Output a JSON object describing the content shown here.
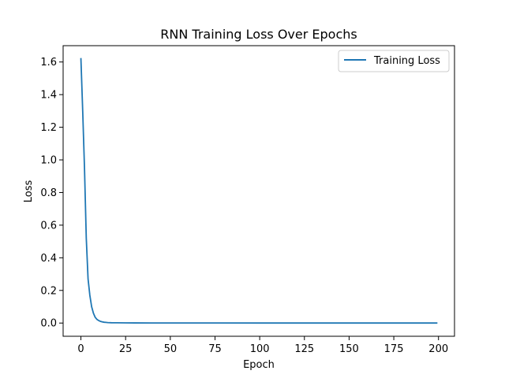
{
  "chart_data": {
    "type": "line",
    "title": "RNN Training Loss Over Epochs",
    "xlabel": "Epoch",
    "ylabel": "Loss",
    "xlim": [
      -9.95,
      208.95
    ],
    "ylim": [
      -0.081,
      1.7
    ],
    "x_ticks": [
      0,
      25,
      50,
      75,
      100,
      125,
      150,
      175,
      200
    ],
    "y_ticks": [
      0.0,
      0.2,
      0.4,
      0.6,
      0.8,
      1.0,
      1.2,
      1.4,
      1.6
    ],
    "grid": false,
    "legend_position": "top-right",
    "series": [
      {
        "name": "Training Loss",
        "color": "#1f77b4",
        "x": [
          0,
          1,
          2,
          3,
          4,
          5,
          6,
          7,
          8,
          9,
          10,
          11,
          12,
          13,
          14,
          15,
          17,
          20,
          25,
          30,
          40,
          50,
          75,
          100,
          125,
          150,
          175,
          199
        ],
        "values": [
          1.62,
          1.3,
          0.95,
          0.52,
          0.27,
          0.17,
          0.1,
          0.06,
          0.035,
          0.022,
          0.015,
          0.01,
          0.007,
          0.005,
          0.004,
          0.003,
          0.002,
          0.0015,
          0.001,
          0.0008,
          0.0005,
          0.0004,
          0.0003,
          0.0002,
          0.0002,
          0.0001,
          0.0001,
          0.0001
        ]
      }
    ]
  }
}
